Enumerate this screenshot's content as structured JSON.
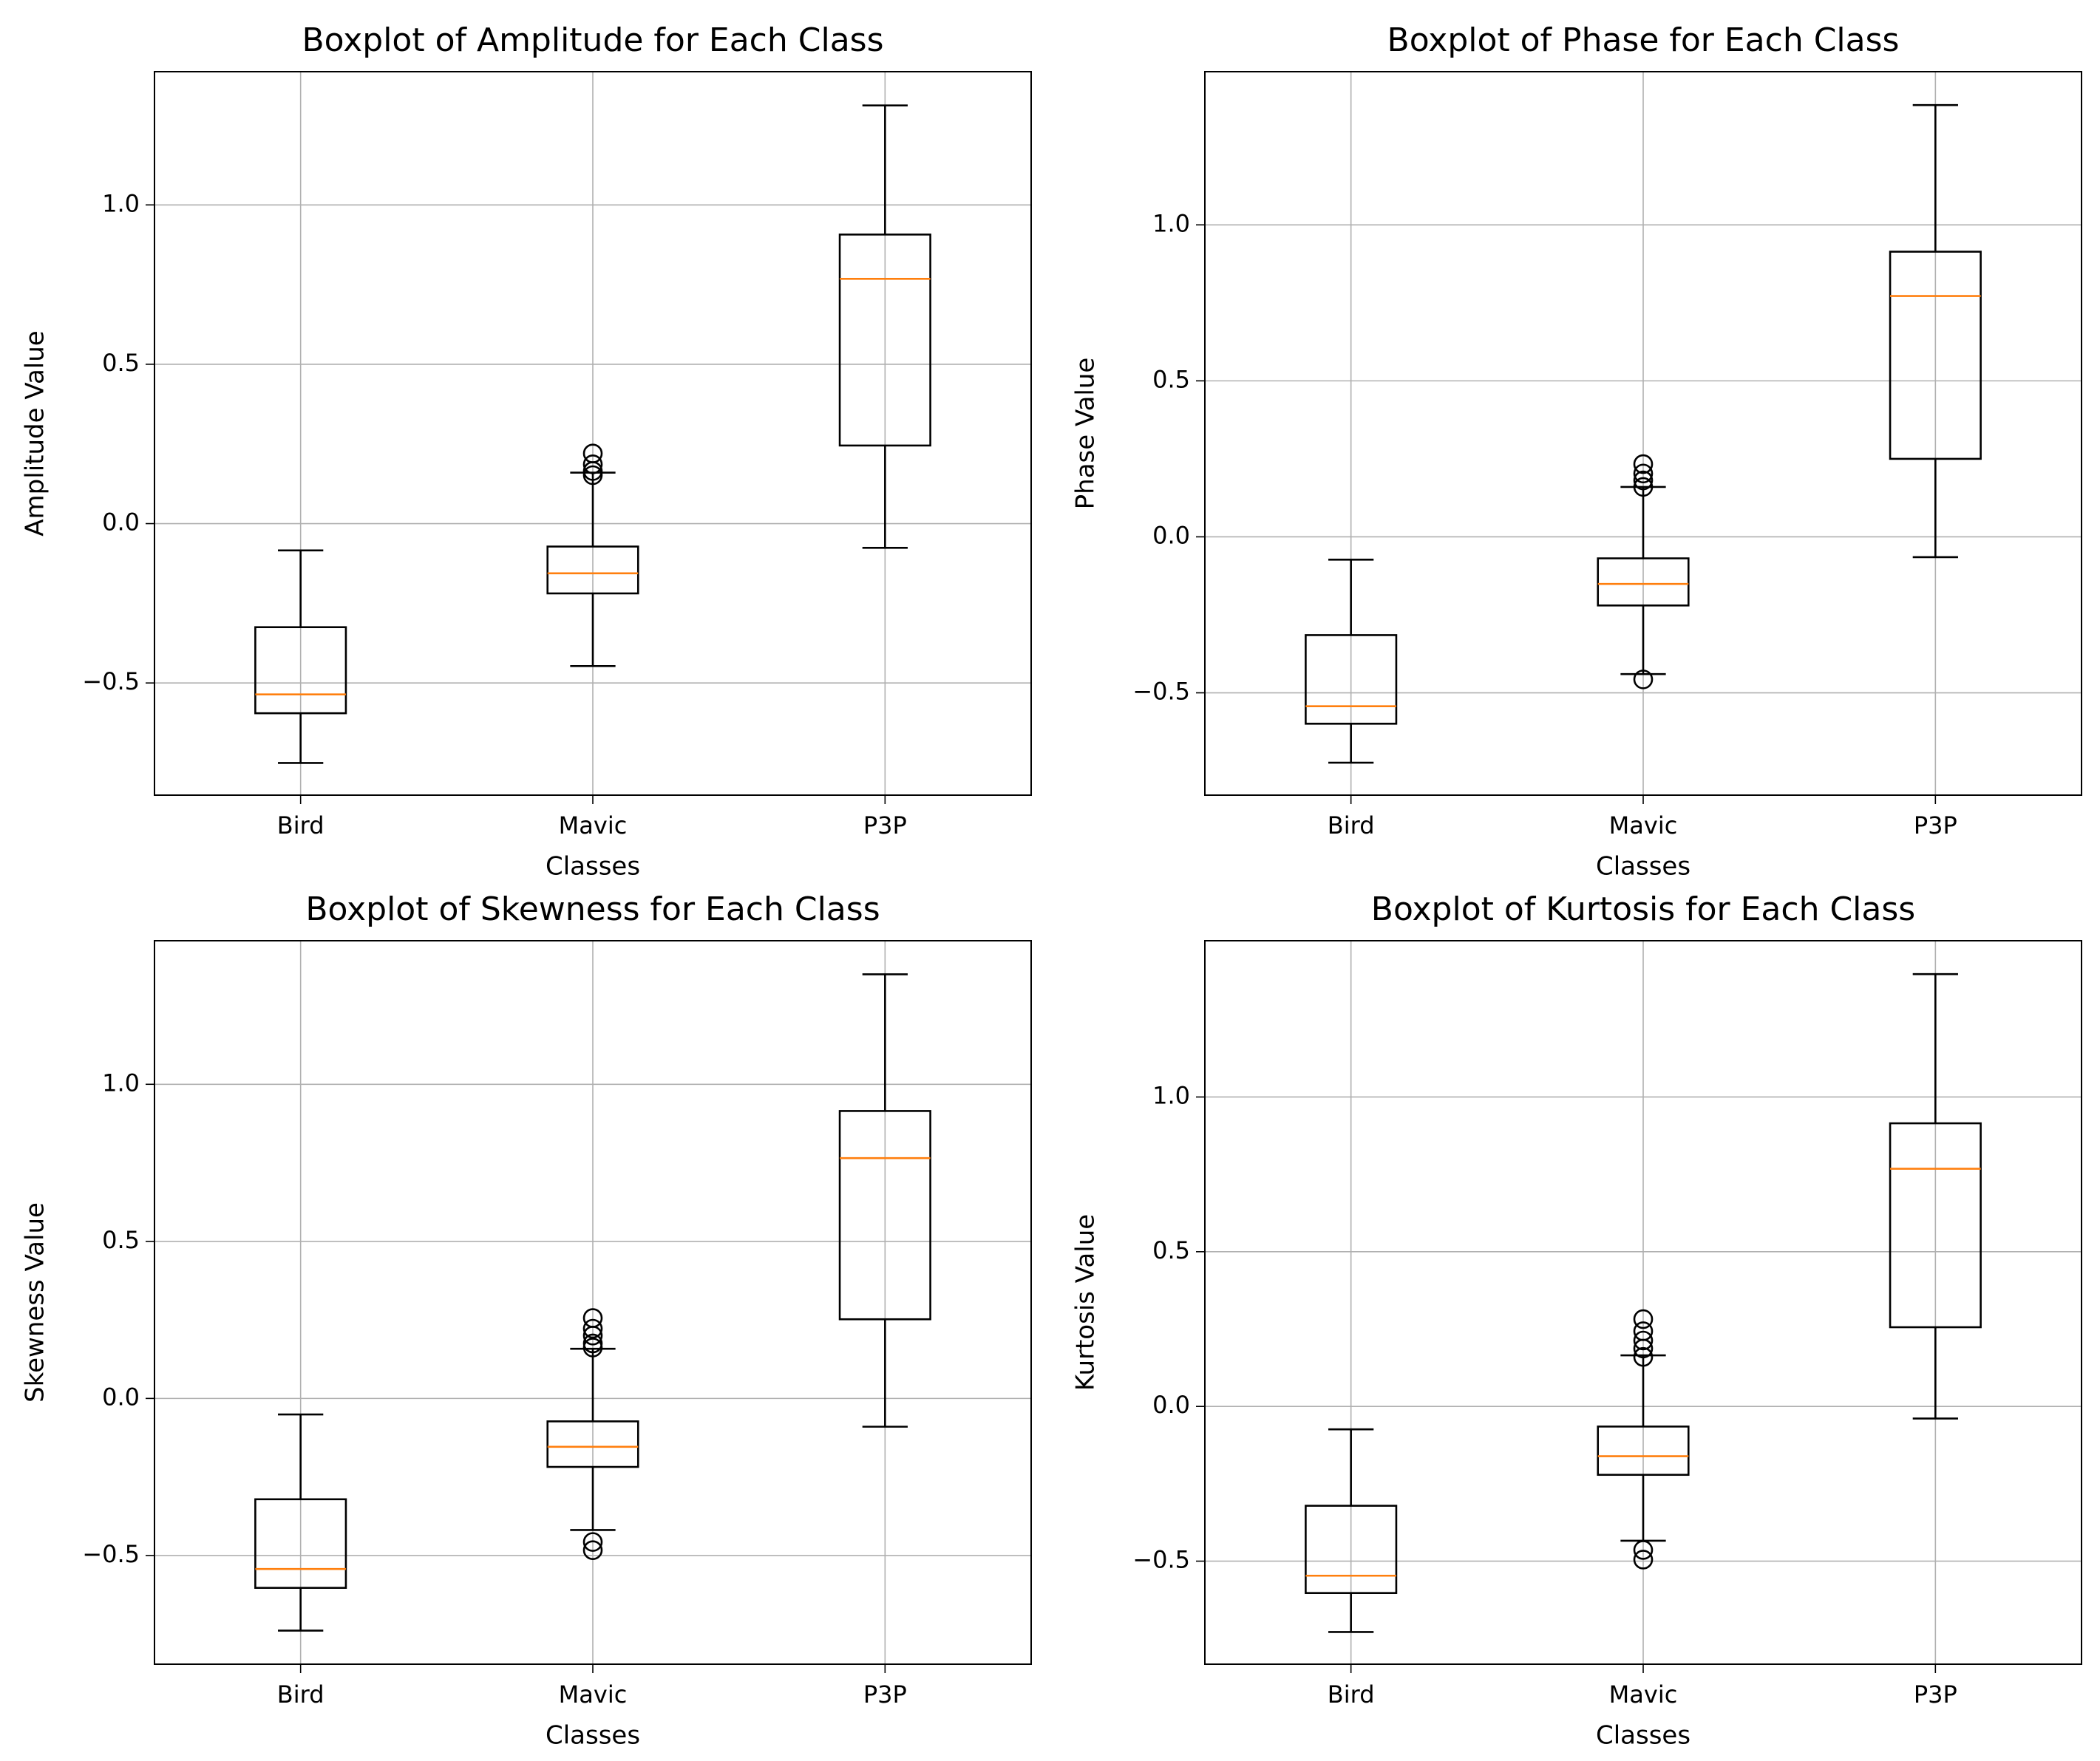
{
  "chart_data": [
    {
      "type": "box",
      "title": "Boxplot of Amplitude for Each Class",
      "x_label": "Classes",
      "y_label": "Amplitude Value",
      "categories": [
        "Bird",
        "Mavic",
        "P3P"
      ],
      "boxes": [
        {
          "whisker_low": -0.751,
          "q1": -0.595,
          "median": -0.536,
          "q3": -0.325,
          "whisker_high": -0.084,
          "outliers": []
        },
        {
          "whisker_low": -0.447,
          "q1": -0.219,
          "median": -0.156,
          "q3": -0.072,
          "whisker_high": 0.16,
          "outliers": [
            0.22,
            0.186,
            0.165,
            0.152
          ]
        },
        {
          "whisker_low": -0.076,
          "q1": 0.245,
          "median": 0.768,
          "q3": 0.907,
          "whisker_high": 1.312,
          "outliers": []
        }
      ],
      "ylim": [
        -0.852,
        1.418
      ],
      "yticks": [
        {
          "value": -0.5,
          "label": "−0.5"
        },
        {
          "value": 0,
          "label": "0.0"
        },
        0.5,
        {
          "value": 1,
          "label": "1.0"
        }
      ],
      "grid": true,
      "box_color": "#000000",
      "median_color": "#ff7f0e"
    },
    {
      "type": "box",
      "title": "Boxplot of Phase for Each Class",
      "x_label": "Classes",
      "y_label": "Phase Value",
      "categories": [
        "Bird",
        "Mavic",
        "P3P"
      ],
      "boxes": [
        {
          "whisker_low": -0.724,
          "q1": -0.599,
          "median": -0.543,
          "q3": -0.315,
          "whisker_high": -0.073,
          "outliers": []
        },
        {
          "whisker_low": -0.44,
          "q1": -0.22,
          "median": -0.151,
          "q3": -0.069,
          "whisker_high": 0.16,
          "outliers": [
            0.233,
            0.203,
            0.181,
            0.16,
            -0.457
          ]
        },
        {
          "whisker_low": -0.065,
          "q1": 0.25,
          "median": 0.772,
          "q3": 0.914,
          "whisker_high": 1.384,
          "outliers": []
        }
      ],
      "ylim": [
        -0.828,
        1.491
      ],
      "yticks": [
        {
          "value": -0.5,
          "label": "−0.5"
        },
        {
          "value": 0,
          "label": "0.0"
        },
        0.5,
        {
          "value": 1,
          "label": "1.0"
        }
      ],
      "grid": true,
      "box_color": "#000000",
      "median_color": "#ff7f0e"
    },
    {
      "type": "box",
      "title": "Boxplot of Skewness for Each Class",
      "x_label": "Classes",
      "y_label": "Skewness Value",
      "categories": [
        "Bird",
        "Mavic",
        "P3P"
      ],
      "boxes": [
        {
          "whisker_low": -0.739,
          "q1": -0.603,
          "median": -0.543,
          "q3": -0.321,
          "whisker_high": -0.051,
          "outliers": []
        },
        {
          "whisker_low": -0.419,
          "q1": -0.218,
          "median": -0.154,
          "q3": -0.073,
          "whisker_high": 0.158,
          "outliers": [
            0.256,
            0.222,
            0.2,
            0.175,
            0.162,
            -0.457,
            -0.483
          ]
        },
        {
          "whisker_low": -0.09,
          "q1": 0.252,
          "median": 0.765,
          "q3": 0.915,
          "whisker_high": 1.35,
          "outliers": []
        }
      ],
      "ylim": [
        -0.846,
        1.457
      ],
      "yticks": [
        {
          "value": -0.5,
          "label": "−0.5"
        },
        {
          "value": 0,
          "label": "0.0"
        },
        0.5,
        {
          "value": 1,
          "label": "1.0"
        }
      ],
      "grid": true,
      "box_color": "#000000",
      "median_color": "#ff7f0e"
    },
    {
      "type": "box",
      "title": "Boxplot of Kurtosis for Each Class",
      "x_label": "Classes",
      "y_label": "Kurtosis Value",
      "categories": [
        "Bird",
        "Mavic",
        "P3P"
      ],
      "boxes": [
        {
          "whisker_low": -0.729,
          "q1": -0.603,
          "median": -0.547,
          "q3": -0.321,
          "whisker_high": -0.074,
          "outliers": []
        },
        {
          "whisker_low": -0.434,
          "q1": -0.221,
          "median": -0.161,
          "q3": -0.065,
          "whisker_high": 0.165,
          "outliers": [
            0.282,
            0.243,
            0.213,
            0.187,
            0.16,
            -0.464,
            -0.495
          ]
        },
        {
          "whisker_low": -0.039,
          "q1": 0.256,
          "median": 0.768,
          "q3": 0.915,
          "whisker_high": 1.397,
          "outliers": []
        }
      ],
      "ylim": [
        -0.833,
        1.505
      ],
      "yticks": [
        {
          "value": -0.5,
          "label": "−0.5"
        },
        {
          "value": 0,
          "label": "0.0"
        },
        0.5,
        {
          "value": 1,
          "label": "1.0"
        }
      ],
      "grid": true,
      "box_color": "#000000",
      "median_color": "#ff7f0e"
    }
  ]
}
